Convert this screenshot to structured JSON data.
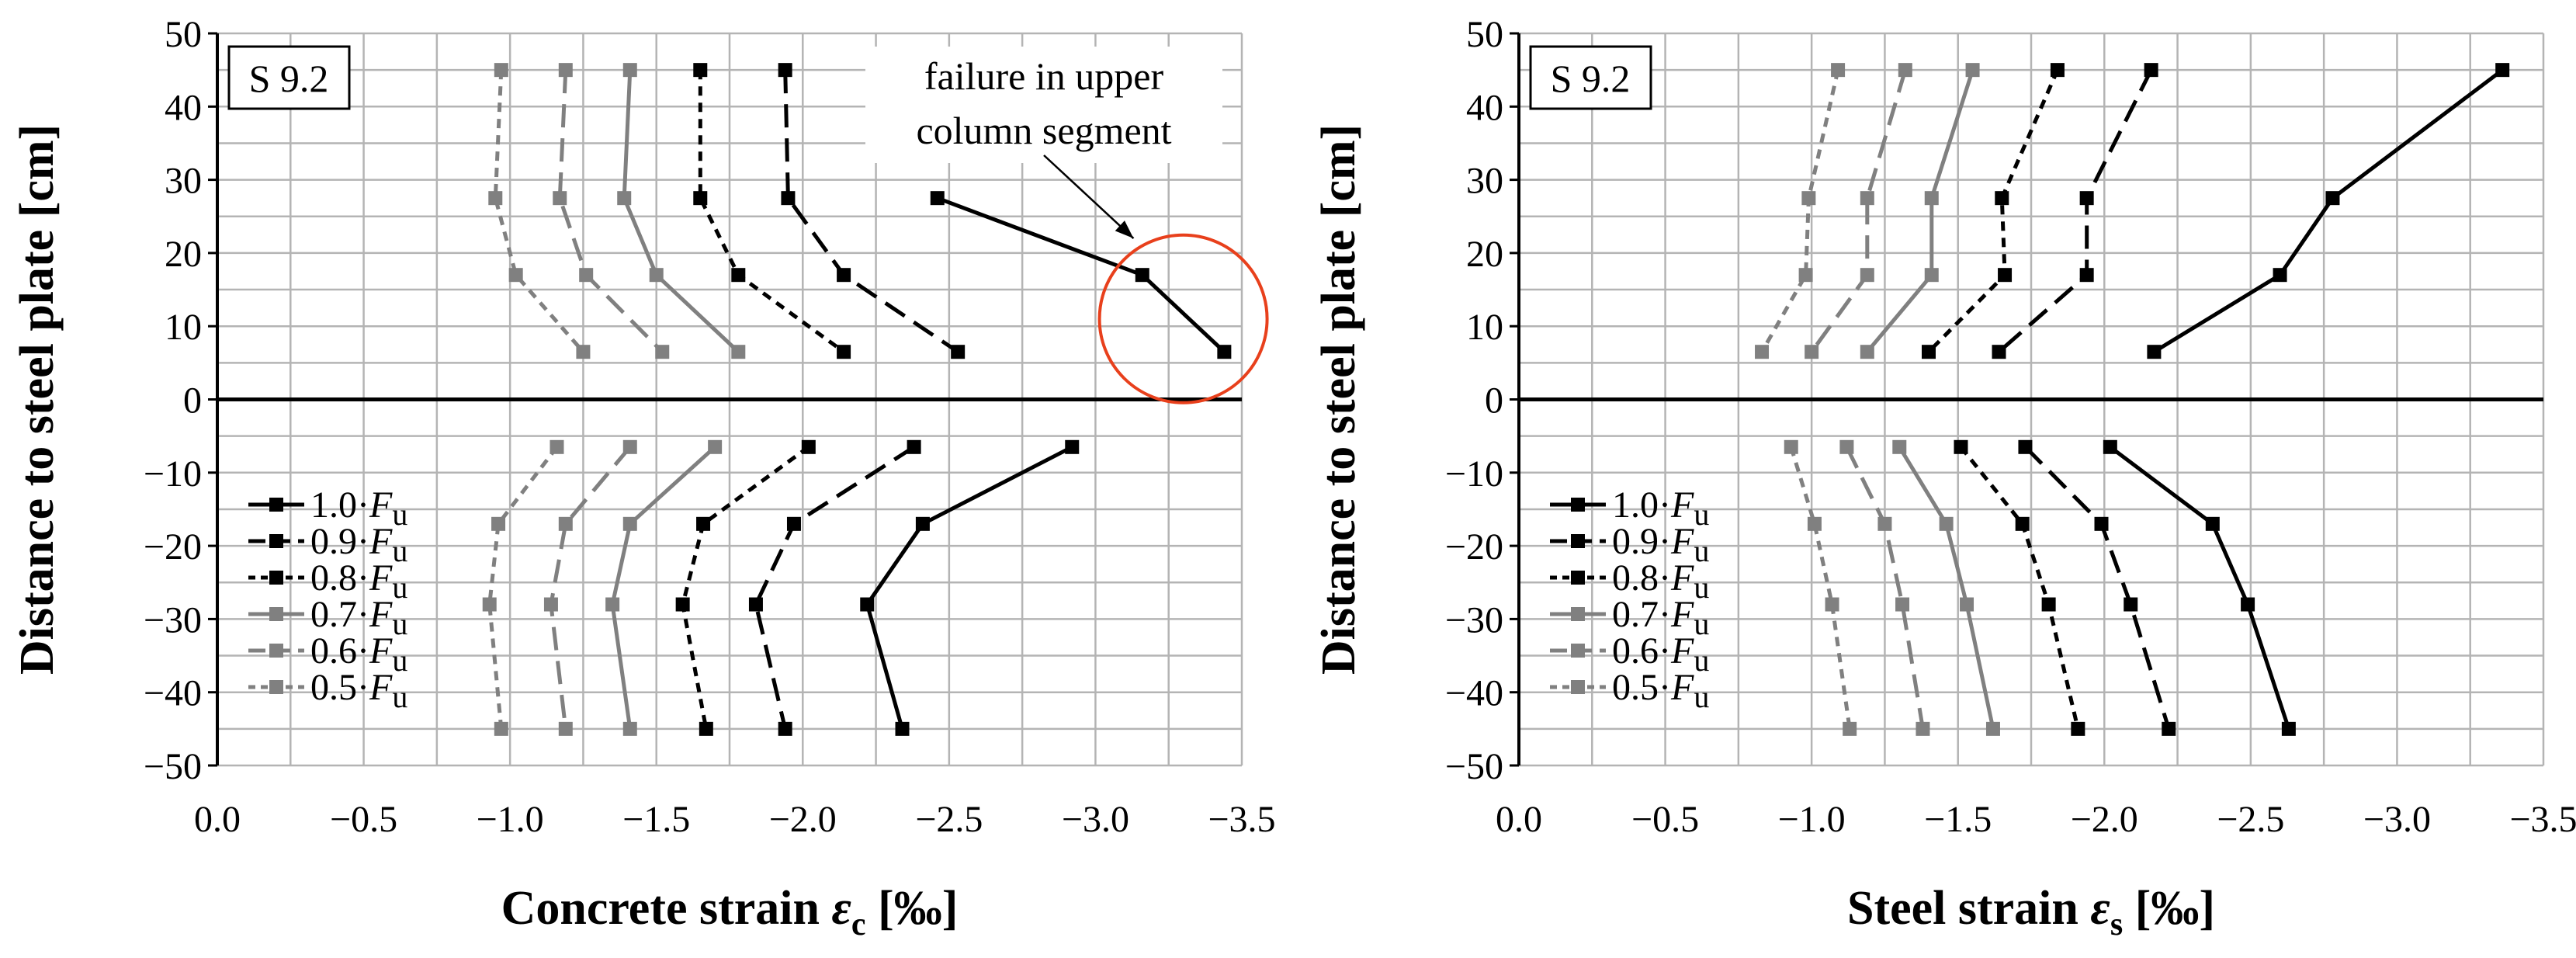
{
  "chart_data": [
    {
      "type": "line",
      "panel_label": "S 9.2",
      "xlabel_main": "Concrete strain ",
      "xlabel_symbol": "ε",
      "xlabel_sub": "c",
      "xlabel_unit": " [‰]",
      "ylabel": "Distance to steel plate [cm]",
      "xlim": [
        0.0,
        -3.5
      ],
      "ylim": [
        -50,
        50
      ],
      "xticks": [
        "0.0",
        "−0.5",
        "−1.0",
        "−1.5",
        "−2.0",
        "−2.5",
        "−3.0",
        "−3.5"
      ],
      "yticks": [
        "50",
        "40",
        "30",
        "20",
        "10",
        "0",
        "−10",
        "−20",
        "−30",
        "−40",
        "−50"
      ],
      "grid": true,
      "legend_position": "bottom-left",
      "annotation": {
        "line1": "failure in upper",
        "line2": "column segment",
        "circle_center": [
          -3.3,
          11
        ],
        "arrow_to": [
          -3.13,
          22
        ]
      },
      "series": [
        {
          "name_prefix": "1.0·",
          "name_F": "F",
          "name_sub": "u",
          "color": "#000000",
          "dash": "solid",
          "upper": [
            [
              -2.46,
              27.5
            ],
            [
              -3.16,
              17
            ],
            [
              -3.44,
              6.5
            ]
          ],
          "lower": [
            [
              -2.92,
              -6.5
            ],
            [
              -2.41,
              -17
            ],
            [
              -2.22,
              -28
            ],
            [
              -2.34,
              -45
            ]
          ]
        },
        {
          "name_prefix": "0.9·",
          "name_F": "F",
          "name_sub": "u",
          "color": "#000000",
          "dash": "long",
          "upper": [
            [
              -1.94,
              45
            ],
            [
              -1.95,
              27.5
            ],
            [
              -2.14,
              17
            ],
            [
              -2.53,
              6.5
            ]
          ],
          "lower": [
            [
              -2.38,
              -6.5
            ],
            [
              -1.97,
              -17
            ],
            [
              -1.84,
              -28
            ],
            [
              -1.94,
              -45
            ]
          ]
        },
        {
          "name_prefix": "0.8·",
          "name_F": "F",
          "name_sub": "u",
          "color": "#000000",
          "dash": "short",
          "upper": [
            [
              -1.65,
              45
            ],
            [
              -1.65,
              27.5
            ],
            [
              -1.78,
              17
            ],
            [
              -2.14,
              6.5
            ]
          ],
          "lower": [
            [
              -2.02,
              -6.5
            ],
            [
              -1.66,
              -17
            ],
            [
              -1.59,
              -28
            ],
            [
              -1.67,
              -45
            ]
          ]
        },
        {
          "name_prefix": "0.7·",
          "name_F": "F",
          "name_sub": "u",
          "color": "#808080",
          "dash": "solid",
          "upper": [
            [
              -1.41,
              45
            ],
            [
              -1.39,
              27.5
            ],
            [
              -1.5,
              17
            ],
            [
              -1.78,
              6.5
            ]
          ],
          "lower": [
            [
              -1.7,
              -6.5
            ],
            [
              -1.41,
              -17
            ],
            [
              -1.35,
              -28
            ],
            [
              -1.41,
              -45
            ]
          ]
        },
        {
          "name_prefix": "0.6·",
          "name_F": "F",
          "name_sub": "u",
          "color": "#808080",
          "dash": "long",
          "upper": [
            [
              -1.19,
              45
            ],
            [
              -1.17,
              27.5
            ],
            [
              -1.26,
              17
            ],
            [
              -1.52,
              6.5
            ]
          ],
          "lower": [
            [
              -1.41,
              -6.5
            ],
            [
              -1.19,
              -17
            ],
            [
              -1.14,
              -28
            ],
            [
              -1.19,
              -45
            ]
          ]
        },
        {
          "name_prefix": "0.5·",
          "name_F": "F",
          "name_sub": "u",
          "color": "#808080",
          "dash": "short",
          "upper": [
            [
              -0.97,
              45
            ],
            [
              -0.95,
              27.5
            ],
            [
              -1.02,
              17
            ],
            [
              -1.25,
              6.5
            ]
          ],
          "lower": [
            [
              -1.16,
              -6.5
            ],
            [
              -0.96,
              -17
            ],
            [
              -0.93,
              -28
            ],
            [
              -0.97,
              -45
            ]
          ]
        }
      ]
    },
    {
      "type": "line",
      "panel_label": "S 9.2",
      "xlabel_main": "Steel strain ",
      "xlabel_symbol": "ε",
      "xlabel_sub": "s",
      "xlabel_unit": " [‰]",
      "ylabel": "Distance to steel plate [cm]",
      "xlim": [
        0.0,
        -3.5
      ],
      "ylim": [
        -50,
        50
      ],
      "xticks": [
        "0.0",
        "−0.5",
        "−1.0",
        "−1.5",
        "−2.0",
        "−2.5",
        "−3.0",
        "−3.5"
      ],
      "yticks": [
        "50",
        "40",
        "30",
        "20",
        "10",
        "0",
        "−10",
        "−20",
        "−30",
        "−40",
        "−50"
      ],
      "grid": true,
      "legend_position": "bottom-left",
      "series": [
        {
          "name_prefix": "1.0·",
          "name_F": "F",
          "name_sub": "u",
          "color": "#000000",
          "dash": "solid",
          "upper": [
            [
              -3.36,
              45
            ],
            [
              -2.78,
              27.5
            ],
            [
              -2.6,
              17
            ],
            [
              -2.17,
              6.5
            ]
          ],
          "lower": [
            [
              -2.02,
              -6.5
            ],
            [
              -2.37,
              -17
            ],
            [
              -2.49,
              -28
            ],
            [
              -2.63,
              -45
            ]
          ]
        },
        {
          "name_prefix": "0.9·",
          "name_F": "F",
          "name_sub": "u",
          "color": "#000000",
          "dash": "long",
          "upper": [
            [
              -2.16,
              45
            ],
            [
              -1.94,
              27.5
            ],
            [
              -1.94,
              17
            ],
            [
              -1.64,
              6.5
            ]
          ],
          "lower": [
            [
              -1.73,
              -6.5
            ],
            [
              -1.99,
              -17
            ],
            [
              -2.09,
              -28
            ],
            [
              -2.22,
              -45
            ]
          ]
        },
        {
          "name_prefix": "0.8·",
          "name_F": "F",
          "name_sub": "u",
          "color": "#000000",
          "dash": "short",
          "upper": [
            [
              -1.84,
              45
            ],
            [
              -1.65,
              27.5
            ],
            [
              -1.66,
              17
            ],
            [
              -1.4,
              6.5
            ]
          ],
          "lower": [
            [
              -1.51,
              -6.5
            ],
            [
              -1.72,
              -17
            ],
            [
              -1.81,
              -28
            ],
            [
              -1.91,
              -45
            ]
          ]
        },
        {
          "name_prefix": "0.7·",
          "name_F": "F",
          "name_sub": "u",
          "color": "#808080",
          "dash": "solid",
          "upper": [
            [
              -1.55,
              45
            ],
            [
              -1.41,
              27.5
            ],
            [
              -1.41,
              17
            ],
            [
              -1.19,
              6.5
            ]
          ],
          "lower": [
            [
              -1.3,
              -6.5
            ],
            [
              -1.46,
              -17
            ],
            [
              -1.53,
              -28
            ],
            [
              -1.62,
              -45
            ]
          ]
        },
        {
          "name_prefix": "0.6·",
          "name_F": "F",
          "name_sub": "u",
          "color": "#808080",
          "dash": "long",
          "upper": [
            [
              -1.32,
              45
            ],
            [
              -1.19,
              27.5
            ],
            [
              -1.19,
              17
            ],
            [
              -1.0,
              6.5
            ]
          ],
          "lower": [
            [
              -1.12,
              -6.5
            ],
            [
              -1.25,
              -17
            ],
            [
              -1.31,
              -28
            ],
            [
              -1.38,
              -45
            ]
          ]
        },
        {
          "name_prefix": "0.5·",
          "name_F": "F",
          "name_sub": "u",
          "color": "#808080",
          "dash": "short",
          "upper": [
            [
              -1.09,
              45
            ],
            [
              -0.99,
              27.5
            ],
            [
              -0.98,
              17
            ],
            [
              -0.83,
              6.5
            ]
          ],
          "lower": [
            [
              -0.93,
              -6.5
            ],
            [
              -1.01,
              -17
            ],
            [
              -1.07,
              -28
            ],
            [
              -1.13,
              -45
            ]
          ]
        }
      ]
    }
  ]
}
